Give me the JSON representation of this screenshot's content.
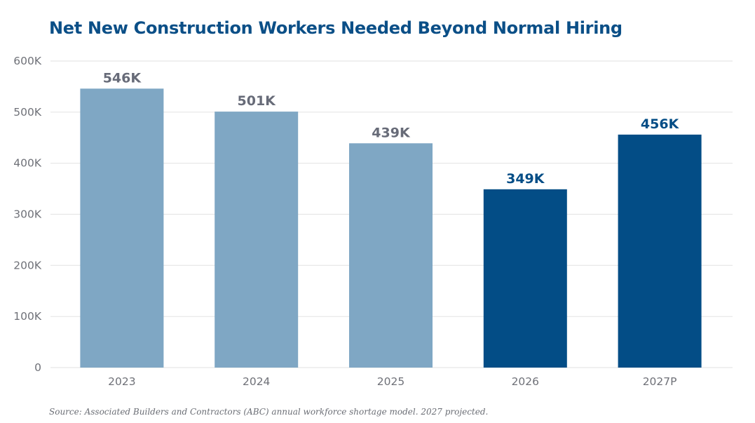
{
  "colors": {
    "title": "#0b4f87",
    "bar_historical": "#7fa7c4",
    "bar_highlight": "#034d86",
    "label_historical": "#676b78",
    "label_highlight": "#034d86",
    "gridline": "#e6e6e6",
    "axis_text": "#6f7178"
  },
  "chart_data": {
    "type": "bar",
    "title": "Net New Construction Workers Needed Beyond Normal Hiring",
    "xlabel": "",
    "ylabel": "",
    "categories": [
      "2023",
      "2024",
      "2025",
      "2026",
      "2027P"
    ],
    "values": [
      546000,
      501000,
      439000,
      349000,
      456000
    ],
    "data_labels": [
      "546K",
      "501K",
      "439K",
      "349K",
      "456K"
    ],
    "highlighted": [
      false,
      false,
      false,
      true,
      true
    ],
    "ylim": [
      0,
      600000
    ],
    "yticks": [
      0,
      100000,
      200000,
      300000,
      400000,
      500000,
      600000
    ],
    "ytick_labels": [
      "0",
      "100K",
      "200K",
      "300K",
      "400K",
      "500K",
      "600K"
    ],
    "grid": true,
    "legend": "none"
  },
  "footer": {
    "source": "Source: Associated Builders and Contractors (ABC) annual workforce shortage model. 2027 projected."
  }
}
